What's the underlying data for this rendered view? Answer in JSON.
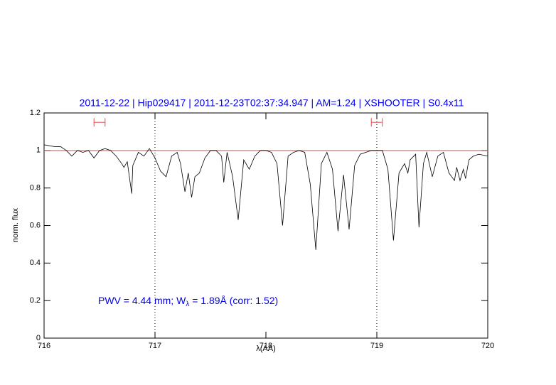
{
  "chart_data": {
    "type": "line",
    "title": "2011-12-22 | Hip029417 | 2011-12-23T02:37:34.947 | AM=1.24 | XSHOOTER | S0.4x11",
    "x_label": "λ(AA)",
    "y_label": "norm. flux",
    "annotation": [
      "PWV = 4.44 mm; W",
      "λ",
      " = 1.89Å (corr: 1.52)"
    ],
    "xlim": [
      716,
      720
    ],
    "ylim": [
      0,
      1.2
    ],
    "xticks": [
      716,
      717,
      718,
      719,
      720
    ],
    "yticks": [
      0,
      0.2,
      0.4,
      0.6,
      0.8,
      1,
      1.2
    ],
    "vlines": [
      717,
      719
    ],
    "vline_color": "#000000",
    "hline": 1,
    "hline_color": "#e05050",
    "ranges": [
      [
        716.45,
        716.55
      ],
      [
        718.95,
        719.05
      ]
    ],
    "range_y": 1.15,
    "range_color": "#e05050",
    "series": [
      {
        "color": "#000000",
        "x": [
          716.0,
          716.1,
          716.15,
          716.2,
          716.25,
          716.3,
          716.35,
          716.4,
          716.45,
          716.5,
          716.55,
          716.6,
          716.65,
          716.7,
          716.72,
          716.75,
          716.79,
          716.8,
          716.85,
          716.9,
          716.95,
          717.0,
          717.05,
          717.1,
          717.15,
          717.2,
          717.23,
          717.27,
          717.3,
          717.33,
          717.36,
          717.4,
          717.45,
          717.5,
          717.55,
          717.6,
          717.62,
          717.65,
          717.7,
          717.75,
          717.8,
          717.85,
          717.9,
          717.95,
          718.0,
          718.05,
          718.1,
          718.15,
          718.2,
          718.25,
          718.3,
          718.35,
          718.4,
          718.45,
          718.5,
          718.55,
          718.6,
          718.65,
          718.7,
          718.75,
          718.8,
          718.85,
          718.9,
          718.95,
          719.0,
          719.05,
          719.1,
          719.15,
          719.2,
          719.25,
          719.28,
          719.3,
          719.35,
          719.38,
          719.42,
          719.45,
          719.5,
          719.55,
          719.6,
          719.65,
          719.7,
          719.72,
          719.75,
          719.78,
          719.8,
          719.83,
          719.87,
          719.92,
          720.0
        ],
        "values": [
          1.03,
          1.02,
          1.02,
          1.0,
          0.97,
          1.0,
          0.99,
          1.0,
          0.96,
          1.0,
          1.01,
          1.0,
          0.97,
          0.93,
          0.91,
          0.94,
          0.77,
          0.92,
          0.99,
          0.97,
          1.01,
          0.96,
          0.89,
          0.86,
          0.97,
          0.99,
          0.93,
          0.78,
          0.88,
          0.75,
          0.86,
          0.88,
          0.96,
          1.0,
          1.0,
          0.97,
          0.83,
          0.99,
          0.86,
          0.63,
          0.95,
          0.9,
          0.97,
          1.0,
          1.0,
          0.99,
          0.93,
          0.6,
          0.97,
          0.99,
          1.0,
          0.99,
          0.82,
          0.47,
          0.93,
          0.99,
          0.9,
          0.57,
          0.87,
          0.58,
          0.92,
          0.98,
          0.99,
          1.0,
          1.0,
          1.0,
          0.9,
          0.52,
          0.88,
          0.93,
          0.88,
          0.95,
          0.98,
          0.59,
          0.93,
          0.99,
          0.86,
          0.97,
          0.99,
          0.88,
          0.84,
          0.91,
          0.84,
          0.9,
          0.85,
          0.95,
          0.97,
          0.98,
          0.97
        ]
      }
    ],
    "title_color": "#0000ee",
    "annotation_color": "#0000ee"
  }
}
